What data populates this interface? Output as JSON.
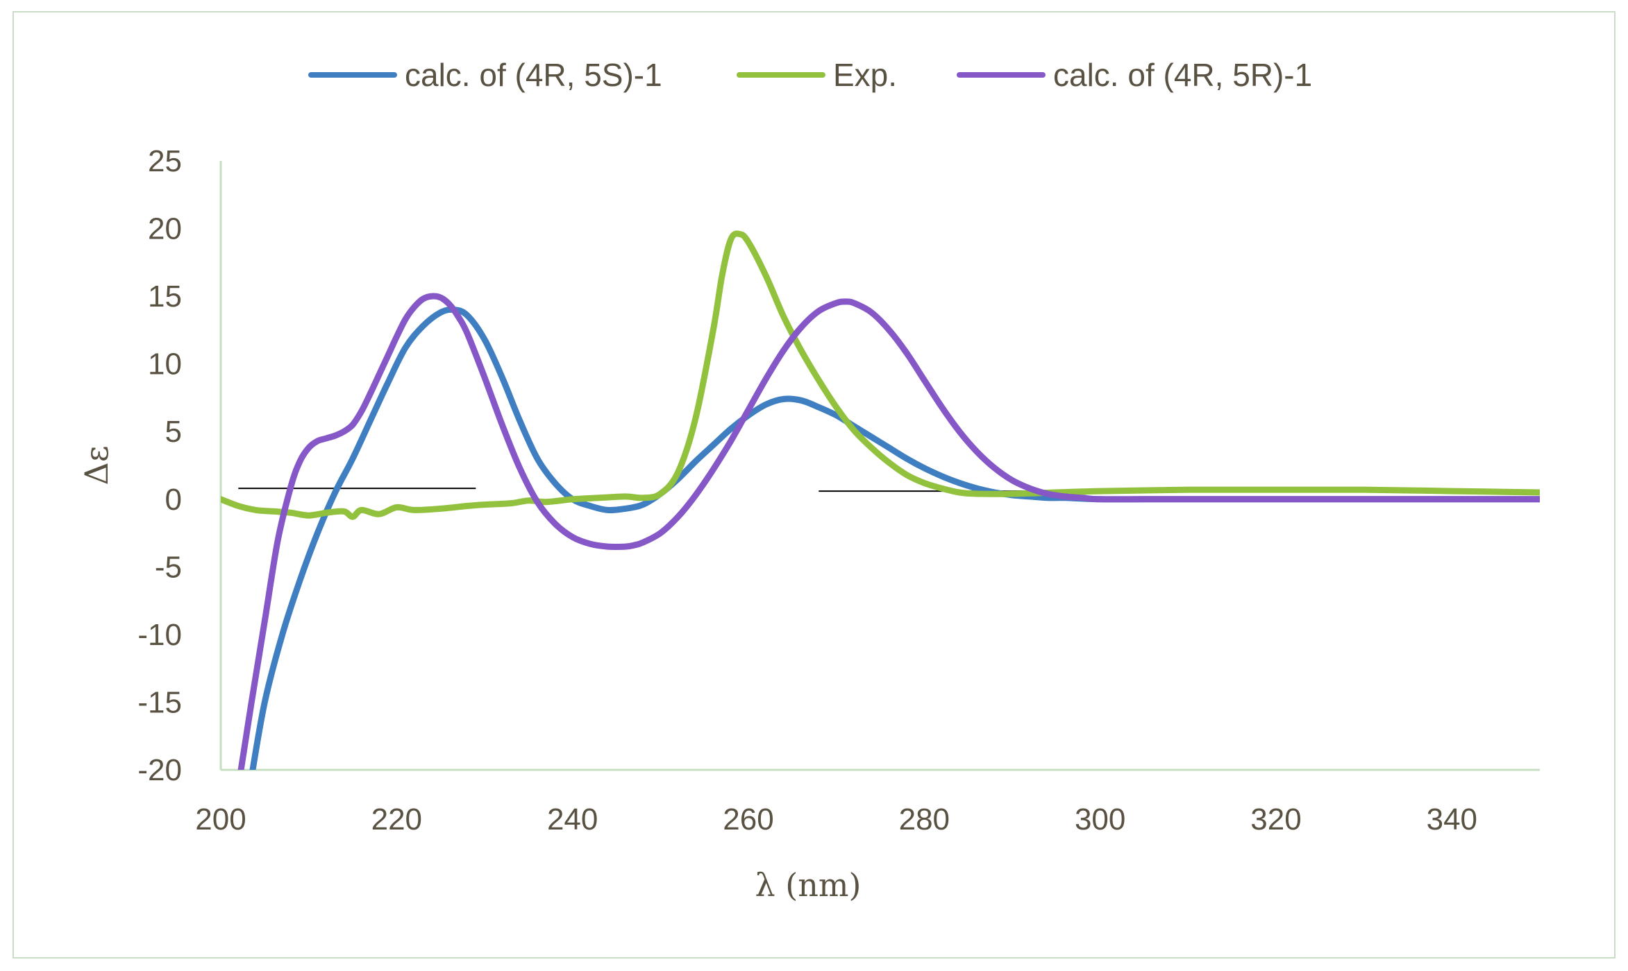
{
  "chart_data": {
    "type": "line",
    "title": "",
    "xlabel": "λ (nm)",
    "ylabel": "Δε",
    "xlim": [
      200,
      350
    ],
    "ylim": [
      -20,
      25
    ],
    "xticks": [
      200,
      220,
      240,
      260,
      280,
      300,
      320,
      340
    ],
    "yticks": [
      25,
      20,
      15,
      10,
      5,
      0,
      -5,
      -10,
      -15,
      -20
    ],
    "xtick_labels": [
      "200",
      "220",
      "240",
      "260",
      "280",
      "300",
      "320",
      "340"
    ],
    "ytick_labels": [
      "25",
      "20",
      "15",
      "10",
      "5",
      "0",
      "-5",
      "-10",
      "-15",
      "-20"
    ],
    "grid": false,
    "legend_position": "top-center",
    "colors": {
      "axis": "#c6dfc0",
      "frame": "#c9dcc6",
      "text": "#595141",
      "baseline": "#000000"
    },
    "reference_lines": [
      {
        "name": "baseline-left",
        "x": [
          202,
          229
        ],
        "y": [
          0.8,
          0.8
        ],
        "color": "#000000"
      },
      {
        "name": "baseline-right",
        "x": [
          268,
          349
        ],
        "y": [
          0.6,
          0.6
        ],
        "color": "#000000"
      }
    ],
    "series": [
      {
        "name": "calc. of (4R, 5S)-1",
        "color": "#3f7fc1",
        "x": [
          203.5,
          205,
          207,
          209,
          211,
          213,
          215,
          217,
          219,
          221,
          223,
          225,
          226.5,
          228,
          230,
          232,
          234,
          236,
          238,
          240,
          242,
          244,
          246,
          248,
          250,
          252,
          254,
          256,
          258,
          260,
          262,
          264,
          266,
          268,
          270,
          272,
          274,
          276,
          278,
          280,
          282,
          284,
          286,
          288,
          290,
          292,
          294,
          296,
          300,
          305,
          310,
          320,
          330,
          340,
          350
        ],
        "y": [
          -20.5,
          -15.0,
          -10.0,
          -6.0,
          -2.5,
          0.5,
          3.0,
          5.8,
          8.6,
          11.2,
          12.8,
          13.8,
          14.0,
          13.6,
          11.8,
          9.0,
          5.8,
          3.0,
          1.2,
          0.0,
          -0.5,
          -0.8,
          -0.7,
          -0.4,
          0.4,
          1.5,
          2.8,
          4.0,
          5.2,
          6.2,
          7.0,
          7.4,
          7.3,
          6.8,
          6.2,
          5.4,
          4.6,
          3.8,
          3.0,
          2.3,
          1.7,
          1.2,
          0.8,
          0.5,
          0.3,
          0.2,
          0.1,
          0.1,
          0.0,
          0.0,
          0.0,
          0.0,
          0.0,
          0.0,
          0.0
        ]
      },
      {
        "name": "Exp.",
        "color": "#92c13e",
        "x": [
          200,
          202,
          204,
          206,
          208,
          210,
          212,
          214,
          215,
          216,
          218,
          220,
          222,
          225,
          228,
          230,
          233,
          235,
          237,
          240,
          243,
          246,
          248,
          250,
          252,
          254,
          256,
          257,
          258,
          259,
          260,
          262,
          264,
          266,
          268,
          270,
          272,
          274,
          276,
          278,
          280,
          282,
          284,
          286,
          290,
          300,
          310,
          320,
          330,
          340,
          350
        ],
        "y": [
          0.0,
          -0.5,
          -0.8,
          -0.9,
          -1.0,
          -1.2,
          -1.0,
          -0.9,
          -1.3,
          -0.8,
          -1.1,
          -0.6,
          -0.8,
          -0.7,
          -0.5,
          -0.4,
          -0.3,
          -0.1,
          -0.2,
          0.0,
          0.1,
          0.2,
          0.1,
          0.4,
          2.0,
          6.0,
          12.5,
          16.5,
          19.2,
          19.6,
          19.0,
          16.5,
          13.5,
          11.0,
          8.8,
          6.8,
          5.1,
          3.8,
          2.7,
          1.8,
          1.2,
          0.8,
          0.5,
          0.4,
          0.4,
          0.6,
          0.7,
          0.7,
          0.7,
          0.6,
          0.5
        ]
      },
      {
        "name": "calc. of (4R, 5R)-1",
        "color": "#8657c6",
        "x": [
          202.3,
          203.5,
          205,
          206.5,
          208,
          209,
          210,
          211,
          212,
          213,
          214,
          215,
          216,
          217,
          218,
          219,
          220,
          221,
          222,
          223,
          224,
          225,
          226,
          227,
          228,
          230,
          232,
          234,
          236,
          238,
          240,
          242,
          244,
          246,
          247,
          248,
          250,
          252,
          254,
          256,
          258,
          260,
          262,
          264,
          266,
          268,
          270,
          271,
          272,
          274,
          276,
          278,
          280,
          282,
          284,
          286,
          288,
          290,
          292,
          294,
          296,
          298,
          300,
          305,
          310,
          320,
          330,
          340,
          350
        ],
        "y": [
          -20.0,
          -15.0,
          -9.0,
          -3.0,
          1.0,
          2.8,
          3.8,
          4.3,
          4.5,
          4.7,
          5.0,
          5.5,
          6.5,
          7.8,
          9.2,
          10.6,
          12.0,
          13.3,
          14.2,
          14.8,
          15.0,
          14.9,
          14.4,
          13.5,
          12.3,
          9.0,
          5.5,
          2.3,
          -0.2,
          -1.8,
          -2.8,
          -3.3,
          -3.5,
          -3.5,
          -3.4,
          -3.2,
          -2.5,
          -1.3,
          0.3,
          2.2,
          4.3,
          6.6,
          8.9,
          11.0,
          12.7,
          13.9,
          14.5,
          14.6,
          14.5,
          13.8,
          12.5,
          10.8,
          8.8,
          6.8,
          5.0,
          3.5,
          2.3,
          1.4,
          0.8,
          0.4,
          0.2,
          0.1,
          0.0,
          0.0,
          0.0,
          0.0,
          0.0,
          0.0,
          0.0
        ]
      }
    ]
  }
}
